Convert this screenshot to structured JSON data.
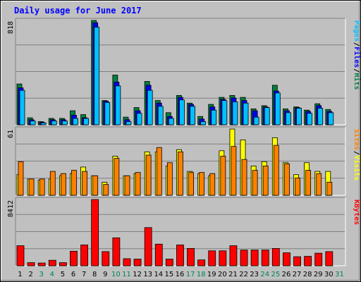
{
  "title": "Daily usage for June 2017",
  "panels": {
    "top": {
      "max_label": "818",
      "legend": [
        {
          "text": "Pages",
          "color": "#00c0ff"
        },
        {
          "text": "/",
          "color": "#000000"
        },
        {
          "text": "Files",
          "color": "#0000ff"
        },
        {
          "text": "/",
          "color": "#000000"
        },
        {
          "text": "Hits",
          "color": "#008040"
        }
      ]
    },
    "middle": {
      "max_label": "61",
      "legend": [
        {
          "text": "Sites",
          "color": "#ff8000"
        },
        {
          "text": "/",
          "color": "#000000"
        },
        {
          "text": "Visits",
          "color": "#ffff00"
        }
      ]
    },
    "bottom": {
      "max_label": "8412",
      "legend": [
        {
          "text": "KBytes",
          "color": "#ff0000"
        }
      ]
    }
  },
  "weekend_days": [
    3,
    4,
    10,
    11,
    17,
    18,
    24,
    25,
    31
  ],
  "colors": {
    "background": "#c0c0c0",
    "title": "#0000ff",
    "weekday_label": "#000000",
    "weekend_label": "#00805a",
    "hits": "#008040",
    "files": "#0000ff",
    "pages": "#00c0ff",
    "visits": "#ffff00",
    "sites": "#ff8000",
    "kbytes": "#ff0000"
  },
  "chart_data": [
    {
      "type": "bar",
      "title": "Daily usage for June 2017",
      "categories": [
        "1",
        "2",
        "3",
        "4",
        "5",
        "6",
        "7",
        "8",
        "9",
        "10",
        "11",
        "12",
        "13",
        "14",
        "15",
        "16",
        "17",
        "18",
        "19",
        "20",
        "21",
        "22",
        "23",
        "24",
        "25",
        "26",
        "27",
        "28",
        "29",
        "30",
        "31"
      ],
      "ylim": [
        0,
        818
      ],
      "series": [
        {
          "name": "Hits",
          "values": [
            320,
            55,
            25,
            50,
            50,
            110,
            80,
            818,
            190,
            390,
            60,
            135,
            340,
            190,
            95,
            230,
            170,
            65,
            160,
            215,
            230,
            215,
            125,
            150,
            310,
            125,
            140,
            115,
            165,
            120,
            0
          ]
        },
        {
          "name": "Files",
          "values": [
            290,
            40,
            20,
            40,
            40,
            75,
            55,
            800,
            185,
            335,
            40,
            110,
            310,
            170,
            65,
            215,
            160,
            45,
            140,
            200,
            210,
            190,
            110,
            140,
            265,
            110,
            135,
            105,
            150,
            105,
            0
          ]
        },
        {
          "name": "Pages",
          "values": [
            270,
            30,
            15,
            30,
            30,
            50,
            50,
            765,
            175,
            305,
            25,
            90,
            270,
            145,
            50,
            195,
            145,
            25,
            115,
            190,
            180,
            170,
            60,
            135,
            250,
            95,
            130,
            90,
            130,
            95,
            0
          ]
        }
      ]
    },
    {
      "type": "bar",
      "categories": [
        "1",
        "2",
        "3",
        "4",
        "5",
        "6",
        "7",
        "8",
        "9",
        "10",
        "11",
        "12",
        "13",
        "14",
        "15",
        "16",
        "17",
        "18",
        "19",
        "20",
        "21",
        "22",
        "23",
        "24",
        "25",
        "26",
        "27",
        "28",
        "29",
        "30",
        "31"
      ],
      "ylim": [
        0,
        61
      ],
      "series": [
        {
          "name": "Visits",
          "values": [
            19,
            15,
            14,
            15,
            18,
            20,
            26,
            18,
            12,
            36,
            18,
            20,
            40,
            40,
            27,
            42,
            22,
            20,
            18,
            41,
            61,
            51,
            27,
            31,
            53,
            30,
            19,
            30,
            22,
            22,
            0
          ]
        },
        {
          "name": "Sites",
          "values": [
            31,
            15,
            15,
            22,
            20,
            23,
            22,
            18,
            10,
            34,
            18,
            21,
            37,
            44,
            30,
            40,
            21,
            21,
            20,
            36,
            45,
            33,
            23,
            27,
            46,
            29,
            16,
            23,
            20,
            12,
            0
          ]
        }
      ]
    },
    {
      "type": "bar",
      "categories": [
        "1",
        "2",
        "3",
        "4",
        "5",
        "6",
        "7",
        "8",
        "9",
        "10",
        "11",
        "12",
        "13",
        "14",
        "15",
        "16",
        "17",
        "18",
        "19",
        "20",
        "21",
        "22",
        "23",
        "24",
        "25",
        "26",
        "27",
        "28",
        "29",
        "30",
        "31"
      ],
      "ylim": [
        0,
        8412
      ],
      "series": [
        {
          "name": "KBytes",
          "values": [
            2550,
            400,
            350,
            700,
            400,
            1850,
            2650,
            8412,
            1800,
            3550,
            900,
            850,
            4850,
            2750,
            850,
            2650,
            2200,
            750,
            1900,
            1900,
            2550,
            2000,
            2000,
            2000,
            2200,
            1650,
            1150,
            1200,
            1600,
            1800,
            0
          ]
        }
      ]
    }
  ]
}
